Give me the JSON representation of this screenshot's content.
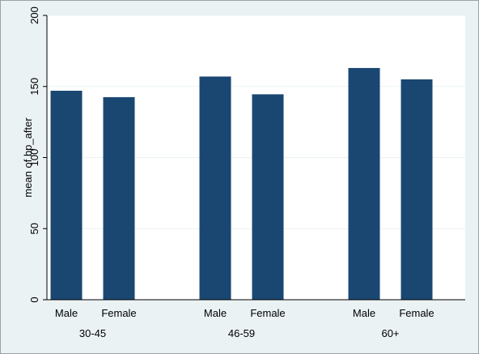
{
  "chart_data": {
    "type": "bar",
    "title": "",
    "xlabel": "",
    "ylabel": "mean of bp_after",
    "ylim": [
      0,
      200
    ],
    "yticks": [
      0,
      50,
      100,
      150,
      200
    ],
    "grid": true,
    "groups": [
      {
        "label": "30-45",
        "categories": [
          "Male",
          "Female"
        ],
        "values": [
          147,
          142.5
        ]
      },
      {
        "label": "46-59",
        "categories": [
          "Male",
          "Female"
        ],
        "values": [
          157,
          144.5
        ]
      },
      {
        "label": "60+",
        "categories": [
          "Male",
          "Female"
        ],
        "values": [
          163,
          155
        ]
      }
    ]
  },
  "colors": {
    "bar": "#1a4772",
    "plot_background": "#ffffff",
    "outer_background": "#eaf2f3",
    "gridline": "#eaf2f3",
    "axis": "#000000"
  }
}
